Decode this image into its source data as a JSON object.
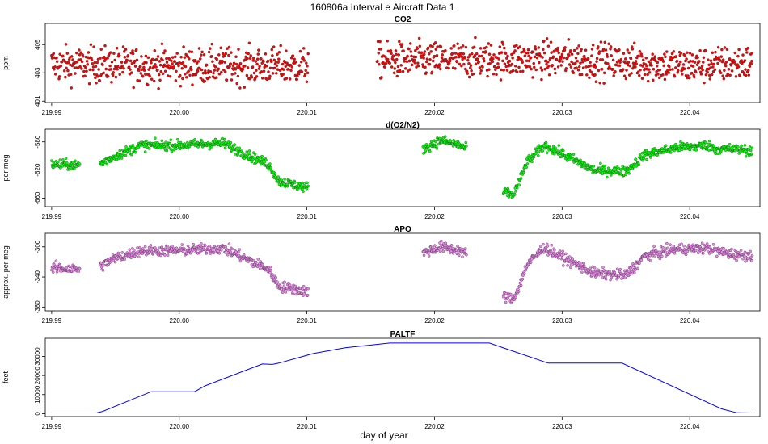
{
  "figure": {
    "title": "160806a   Interval e Aircraft Data 1",
    "xlabel": "day of year"
  },
  "chart_data": [
    {
      "type": "scatter",
      "title": "CO2",
      "ylabel": "ppm",
      "color": "#ff0000",
      "xlim": [
        219.9895,
        220.0455
      ],
      "ylim": [
        400.9,
        406.5
      ],
      "yticks": [
        401,
        403,
        405
      ],
      "xticks": [
        219.99,
        220.0,
        220.01,
        220.02,
        220.03,
        220.04
      ],
      "xtick_labels": [
        "219.99",
        "220.00",
        "220.01",
        "220.02",
        "220.03",
        "220.04"
      ],
      "segments": [
        [
          219.99,
          220.0101
        ],
        [
          220.0155,
          220.0449
        ]
      ],
      "trend_x": [
        219.99,
        220.0,
        220.01,
        220.016,
        220.02,
        220.03,
        220.04,
        220.0449
      ],
      "trend_y": [
        403.6,
        403.5,
        403.5,
        403.9,
        403.9,
        404.0,
        403.5,
        403.7
      ],
      "noise": 0.9
    },
    {
      "type": "scatter",
      "title": "d(O2/N2)",
      "ylabel": "per meg",
      "color": "#00ff00",
      "xlim": [
        219.9895,
        220.0455
      ],
      "ylim": [
        -672,
        -562
      ],
      "yticks": [
        -660,
        -620,
        -580
      ],
      "xticks": [
        219.99,
        220.0,
        220.01,
        220.02,
        220.03,
        220.04
      ],
      "xtick_labels": [
        "219.99",
        "220.00",
        "220.01",
        "220.02",
        "220.03",
        "220.04"
      ],
      "segments": [
        [
          219.99,
          219.9922
        ],
        [
          219.9938,
          220.0101
        ],
        [
          220.0191,
          220.0225
        ],
        [
          220.0254,
          220.0449
        ]
      ],
      "trend_x": [
        219.99,
        219.9922,
        219.9938,
        219.995,
        219.997,
        220.0,
        220.002,
        220.0035,
        220.0055,
        220.007,
        220.0078,
        220.0101,
        220.0191,
        220.0205,
        220.022,
        220.0225,
        220.0254,
        220.0262,
        220.0268,
        220.0272,
        220.0286,
        220.029,
        220.0325,
        220.035,
        220.0365,
        220.039,
        220.0415,
        220.042,
        220.0435,
        220.0449
      ],
      "trend_y": [
        -612,
        -613,
        -611,
        -600,
        -585,
        -585,
        -583,
        -582,
        -600,
        -612,
        -636,
        -645,
        -590,
        -578,
        -585,
        -590,
        -651,
        -655,
        -630,
        -610,
        -585,
        -588,
        -620,
        -622,
        -598,
        -588,
        -585,
        -590,
        -590,
        -593
      ],
      "noise": 5
    },
    {
      "type": "scatter",
      "title": "APO",
      "ylabel": "approx. per meg",
      "color": "#ee82ee",
      "xlim": [
        219.9895,
        220.0455
      ],
      "ylim": [
        -385,
        -282
      ],
      "yticks": [
        -380,
        -340,
        -300
      ],
      "xticks": [
        219.99,
        220.0,
        220.01,
        220.02,
        220.03,
        220.04
      ],
      "xtick_labels": [
        "219.99",
        "220.00",
        "220.01",
        "220.02",
        "220.03",
        "220.04"
      ],
      "segments": [
        [
          219.99,
          219.9922
        ],
        [
          219.9938,
          220.0101
        ],
        [
          220.0191,
          220.0225
        ],
        [
          220.0254,
          220.0449
        ]
      ],
      "trend_x": [
        219.99,
        219.9922,
        219.9938,
        219.995,
        219.997,
        220.0,
        220.002,
        220.0035,
        220.0055,
        220.007,
        220.0078,
        220.0101,
        220.0191,
        220.0205,
        220.022,
        220.0225,
        220.0254,
        220.0262,
        220.0268,
        220.0272,
        220.0286,
        220.029,
        220.0325,
        220.035,
        220.0365,
        220.039,
        220.0415,
        220.042,
        220.0435,
        220.0449
      ],
      "trend_y": [
        -328,
        -330,
        -326,
        -315,
        -305,
        -305,
        -303,
        -302,
        -318,
        -330,
        -352,
        -360,
        -308,
        -300,
        -305,
        -310,
        -365,
        -370,
        -345,
        -325,
        -300,
        -305,
        -335,
        -338,
        -312,
        -303,
        -302,
        -305,
        -310,
        -312
      ],
      "noise": 5
    },
    {
      "type": "line",
      "title": "PALTF",
      "ylabel": "feet",
      "color": "#0000ff",
      "xlim": [
        219.9895,
        220.0455
      ],
      "ylim": [
        -1500,
        39500
      ],
      "yticks": [
        0,
        10000,
        20000,
        30000
      ],
      "xticks": [
        219.99,
        220.0,
        220.01,
        220.02,
        220.03,
        220.04
      ],
      "xtick_labels": [
        "219.99",
        "220.00",
        "220.01",
        "220.02",
        "220.03",
        "220.04"
      ],
      "x": [
        219.99,
        219.9935,
        219.994,
        219.9978,
        220.0012,
        220.002,
        220.0065,
        220.0073,
        220.0078,
        220.0105,
        220.013,
        220.0165,
        220.0243,
        220.0289,
        220.0347,
        220.0425,
        220.0437,
        220.0449
      ],
      "y": [
        400,
        400,
        1200,
        11500,
        11500,
        14500,
        26000,
        25800,
        26500,
        31500,
        34500,
        37000,
        37000,
        26500,
        26500,
        2500,
        500,
        400
      ]
    }
  ]
}
